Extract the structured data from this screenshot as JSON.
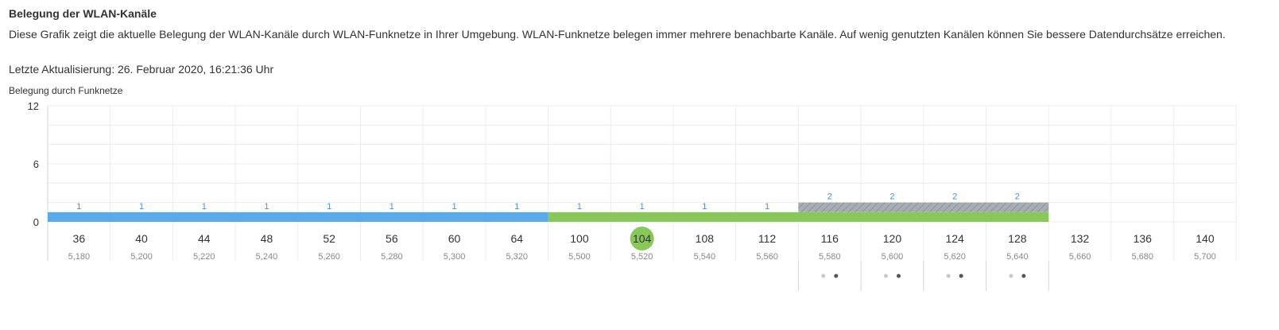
{
  "header": {
    "title": "Belegung der WLAN-Kanäle",
    "description": "Diese Grafik zeigt die aktuelle Belegung der WLAN-Kanäle durch WLAN-Funknetze in Ihrer Umgebung. WLAN-Funknetze belegen immer mehrere benachbarte Kanäle. Auf wenig genutzten Kanälen können Sie bessere Datendurchsätze erreichen.",
    "last_update": "Letzte Aktualisierung: 26. Februar 2020, 16:21:36 Uhr",
    "chart_label": "Belegung durch Funknetze"
  },
  "colors": {
    "blue": "#5aa9e8",
    "green": "#88c85a",
    "hatch": "#a7adb2",
    "grid": "#ececec",
    "label": "#4a90d9"
  },
  "chart_data": {
    "type": "bar",
    "ylim": [
      0,
      12
    ],
    "yticks": [
      "0",
      "6",
      "12"
    ],
    "grid": true,
    "selected_channel": "104",
    "categories": [
      "36",
      "40",
      "44",
      "48",
      "52",
      "56",
      "60",
      "64",
      "100",
      "104",
      "108",
      "112",
      "116",
      "120",
      "124",
      "128",
      "132",
      "136",
      "140"
    ],
    "frequencies": [
      "5,180",
      "5,200",
      "5,220",
      "5,240",
      "5,260",
      "5,280",
      "5,300",
      "5,320",
      "5,500",
      "5,520",
      "5,540",
      "5,560",
      "5,580",
      "5,600",
      "5,620",
      "5,640",
      "5,660",
      "5,680",
      "5,700"
    ],
    "values": [
      1,
      1,
      1,
      1,
      1,
      1,
      1,
      1,
      1,
      1,
      1,
      1,
      2,
      2,
      2,
      2,
      null,
      null,
      null
    ],
    "segments": [
      {
        "color": "blue",
        "from": 0,
        "to": 7
      },
      {
        "color": "green",
        "from": 8,
        "to": 15
      },
      {
        "color": "hatch",
        "from": 12,
        "to": 15
      }
    ],
    "pager_columns": [
      12,
      13,
      14,
      15
    ]
  }
}
